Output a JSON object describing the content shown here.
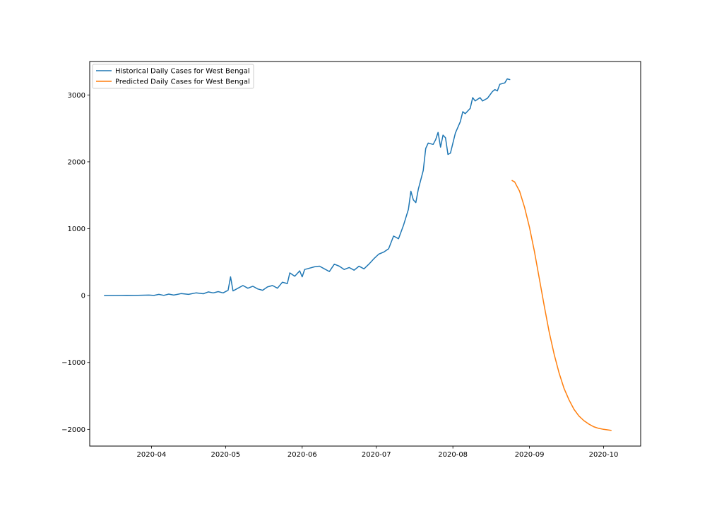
{
  "chart_data": {
    "type": "line",
    "title": "",
    "xlabel": "",
    "ylabel": "",
    "xlim": [
      "2020-03-07",
      "2020-10-16"
    ],
    "ylim": [
      -2250,
      3500
    ],
    "grid": false,
    "legend": {
      "placement": "upper-left"
    },
    "x_ticks": [
      "2020-04",
      "2020-05",
      "2020-06",
      "2020-07",
      "2020-08",
      "2020-09",
      "2020-10"
    ],
    "y_ticks": [
      -2000,
      -1000,
      0,
      1000,
      2000,
      3000
    ],
    "y_tick_labels": [
      "−2000",
      "−1000",
      "0",
      "1000",
      "2000",
      "3000"
    ],
    "series": [
      {
        "name": "Historical Daily Cases for West Bengal",
        "color": "#1f77b4",
        "points": [
          [
            "2020-03-13",
            0
          ],
          [
            "2020-03-18",
            1
          ],
          [
            "2020-03-22",
            3
          ],
          [
            "2020-03-25",
            2
          ],
          [
            "2020-03-28",
            6
          ],
          [
            "2020-03-31",
            8
          ],
          [
            "2020-04-02",
            2
          ],
          [
            "2020-04-04",
            18
          ],
          [
            "2020-04-06",
            4
          ],
          [
            "2020-04-08",
            22
          ],
          [
            "2020-04-10",
            8
          ],
          [
            "2020-04-13",
            30
          ],
          [
            "2020-04-16",
            18
          ],
          [
            "2020-04-19",
            40
          ],
          [
            "2020-04-22",
            28
          ],
          [
            "2020-04-24",
            55
          ],
          [
            "2020-04-26",
            40
          ],
          [
            "2020-04-28",
            60
          ],
          [
            "2020-04-30",
            40
          ],
          [
            "2020-05-02",
            80
          ],
          [
            "2020-05-03",
            280
          ],
          [
            "2020-05-04",
            70
          ],
          [
            "2020-05-06",
            110
          ],
          [
            "2020-05-08",
            150
          ],
          [
            "2020-05-10",
            110
          ],
          [
            "2020-05-12",
            140
          ],
          [
            "2020-05-14",
            100
          ],
          [
            "2020-05-16",
            80
          ],
          [
            "2020-05-18",
            130
          ],
          [
            "2020-05-20",
            150
          ],
          [
            "2020-05-22",
            110
          ],
          [
            "2020-05-24",
            200
          ],
          [
            "2020-05-26",
            180
          ],
          [
            "2020-05-27",
            340
          ],
          [
            "2020-05-29",
            290
          ],
          [
            "2020-05-31",
            370
          ],
          [
            "2020-06-01",
            280
          ],
          [
            "2020-06-02",
            390
          ],
          [
            "2020-06-04",
            410
          ],
          [
            "2020-06-06",
            430
          ],
          [
            "2020-06-08",
            440
          ],
          [
            "2020-06-10",
            400
          ],
          [
            "2020-06-12",
            360
          ],
          [
            "2020-06-14",
            470
          ],
          [
            "2020-06-16",
            440
          ],
          [
            "2020-06-18",
            390
          ],
          [
            "2020-06-20",
            420
          ],
          [
            "2020-06-22",
            380
          ],
          [
            "2020-06-24",
            440
          ],
          [
            "2020-06-26",
            400
          ],
          [
            "2020-06-28",
            470
          ],
          [
            "2020-06-30",
            550
          ],
          [
            "2020-07-02",
            620
          ],
          [
            "2020-07-04",
            650
          ],
          [
            "2020-07-06",
            700
          ],
          [
            "2020-07-08",
            890
          ],
          [
            "2020-07-10",
            850
          ],
          [
            "2020-07-12",
            1050
          ],
          [
            "2020-07-14",
            1290
          ],
          [
            "2020-07-15",
            1560
          ],
          [
            "2020-07-16",
            1430
          ],
          [
            "2020-07-17",
            1390
          ],
          [
            "2020-07-18",
            1590
          ],
          [
            "2020-07-20",
            1870
          ],
          [
            "2020-07-21",
            2200
          ],
          [
            "2020-07-22",
            2280
          ],
          [
            "2020-07-24",
            2260
          ],
          [
            "2020-07-25",
            2330
          ],
          [
            "2020-07-26",
            2440
          ],
          [
            "2020-07-27",
            2220
          ],
          [
            "2020-07-28",
            2400
          ],
          [
            "2020-07-29",
            2360
          ],
          [
            "2020-07-30",
            2110
          ],
          [
            "2020-07-31",
            2130
          ],
          [
            "2020-08-02",
            2430
          ],
          [
            "2020-08-04",
            2600
          ],
          [
            "2020-08-05",
            2750
          ],
          [
            "2020-08-06",
            2720
          ],
          [
            "2020-08-08",
            2800
          ],
          [
            "2020-08-09",
            2960
          ],
          [
            "2020-08-10",
            2910
          ],
          [
            "2020-08-12",
            2960
          ],
          [
            "2020-08-13",
            2910
          ],
          [
            "2020-08-15",
            2950
          ],
          [
            "2020-08-17",
            3050
          ],
          [
            "2020-08-18",
            3080
          ],
          [
            "2020-08-19",
            3060
          ],
          [
            "2020-08-20",
            3160
          ],
          [
            "2020-08-22",
            3180
          ],
          [
            "2020-08-23",
            3240
          ],
          [
            "2020-08-24",
            3230
          ]
        ]
      },
      {
        "name": "Predicted Daily Cases for West Bengal",
        "color": "#ff7f0e",
        "points": [
          [
            "2020-08-25",
            1720
          ],
          [
            "2020-08-26",
            1700
          ],
          [
            "2020-08-28",
            1560
          ],
          [
            "2020-08-30",
            1320
          ],
          [
            "2020-09-01",
            1020
          ],
          [
            "2020-09-03",
            660
          ],
          [
            "2020-09-05",
            250
          ],
          [
            "2020-09-07",
            -160
          ],
          [
            "2020-09-09",
            -550
          ],
          [
            "2020-09-11",
            -880
          ],
          [
            "2020-09-13",
            -1160
          ],
          [
            "2020-09-15",
            -1390
          ],
          [
            "2020-09-17",
            -1560
          ],
          [
            "2020-09-19",
            -1700
          ],
          [
            "2020-09-21",
            -1800
          ],
          [
            "2020-09-23",
            -1870
          ],
          [
            "2020-09-25",
            -1920
          ],
          [
            "2020-09-27",
            -1960
          ],
          [
            "2020-09-29",
            -1985
          ],
          [
            "2020-10-01",
            -2000
          ],
          [
            "2020-10-03",
            -2010
          ],
          [
            "2020-10-04",
            -2015
          ]
        ]
      }
    ]
  }
}
